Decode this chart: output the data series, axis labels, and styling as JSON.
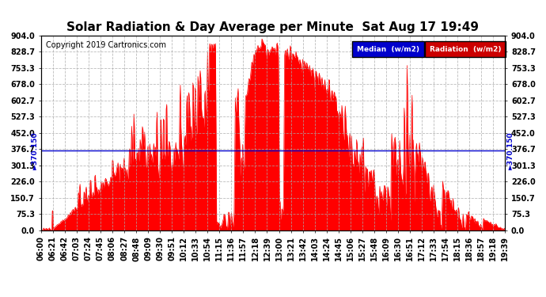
{
  "title": "Solar Radiation & Day Average per Minute  Sat Aug 17 19:49",
  "copyright": "Copyright 2019 Cartronics.com",
  "median_line": 370.15,
  "ymax": 904.0,
  "yticks": [
    0.0,
    75.3,
    150.7,
    226.0,
    301.3,
    376.7,
    452.0,
    527.3,
    602.7,
    678.0,
    753.3,
    828.7,
    904.0
  ],
  "ytick_labels": [
    "0.0",
    "75.3",
    "150.7",
    "226.0",
    "301.3",
    "376.7",
    "452.0",
    "527.3",
    "602.7",
    "678.0",
    "753.3",
    "828.7",
    "904.0"
  ],
  "xtick_labels": [
    "06:00",
    "06:21",
    "06:42",
    "07:03",
    "07:24",
    "07:45",
    "08:06",
    "08:27",
    "08:48",
    "09:09",
    "09:30",
    "09:51",
    "10:12",
    "10:33",
    "10:54",
    "11:15",
    "11:36",
    "11:57",
    "12:18",
    "12:39",
    "13:00",
    "13:21",
    "13:42",
    "14:03",
    "14:24",
    "14:45",
    "15:06",
    "15:27",
    "15:48",
    "16:09",
    "16:30",
    "16:51",
    "17:12",
    "17:33",
    "17:54",
    "18:15",
    "18:36",
    "18:57",
    "19:18",
    "19:39"
  ],
  "bg_color": "#ffffff",
  "fill_color": "#ff0000",
  "line_color": "#cc0000",
  "grid_color": "#aaaaaa",
  "median_color": "#0000cc",
  "legend_median_bg": "#0000cc",
  "legend_radiation_bg": "#cc0000",
  "legend_text_color": "#ffffff",
  "title_fontsize": 11,
  "copyright_fontsize": 7,
  "tick_fontsize": 7,
  "tick_color": "#000000"
}
